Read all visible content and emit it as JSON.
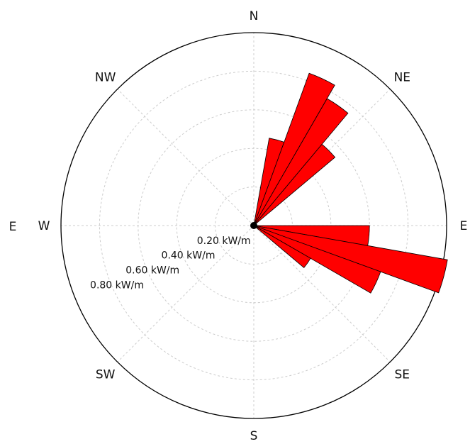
{
  "chart_data": {
    "type": "wind-rose",
    "unit": "kW/m",
    "direction_labels": [
      {
        "label": "N",
        "deg": 0
      },
      {
        "label": "NE",
        "deg": 45
      },
      {
        "label": "E",
        "deg": 90
      },
      {
        "label": "SE",
        "deg": 135
      },
      {
        "label": "S",
        "deg": 180
      },
      {
        "label": "SW",
        "deg": 225
      },
      {
        "label": "W",
        "deg": 270
      },
      {
        "label": "NW",
        "deg": 315
      }
    ],
    "radial_ticks": [
      {
        "value": 0.2,
        "label": "0.20 kW/m"
      },
      {
        "value": 0.4,
        "label": "0.40 kW/m"
      },
      {
        "value": 0.6,
        "label": "0.60 kW/m"
      },
      {
        "value": 0.8,
        "label": "0.80 kW/m"
      }
    ],
    "rmax": 1.0,
    "grid": true,
    "bar_color": "#ff0000",
    "bars": [
      {
        "dir_deg": 15,
        "value": 0.46
      },
      {
        "dir_deg": 25,
        "value": 0.84
      },
      {
        "dir_deg": 35,
        "value": 0.76
      },
      {
        "dir_deg": 45,
        "value": 0.55
      },
      {
        "dir_deg": 95,
        "value": 0.6
      },
      {
        "dir_deg": 105,
        "value": 1.02
      },
      {
        "dir_deg": 115,
        "value": 0.7
      },
      {
        "dir_deg": 125,
        "value": 0.34
      }
    ],
    "left_edge_label": "E"
  }
}
